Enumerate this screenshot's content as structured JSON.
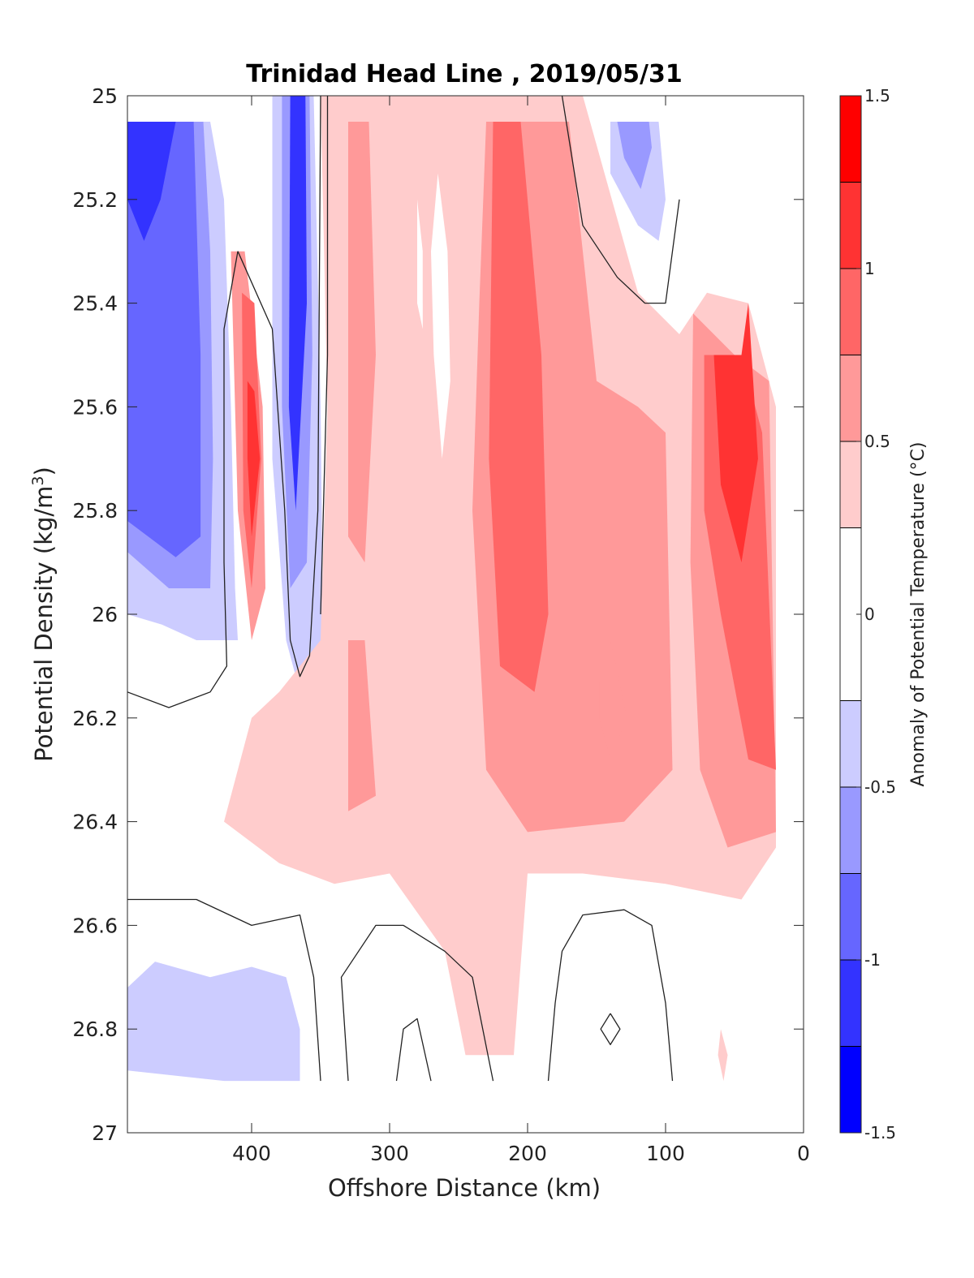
{
  "chart_data": {
    "type": "heatmap",
    "title": "Trinidad Head Line , 2019/05/31",
    "xlabel": "Offshore Distance (km)",
    "ylabel": "Potential Density (kg/m",
    "ylabel_superscript": "3",
    "ylabel_suffix": ")",
    "colorbar_label": "Anomaly of Potential Temperature (°C)",
    "xlim": [
      490,
      0
    ],
    "x_reversed": true,
    "ylim": [
      25,
      27
    ],
    "y_reversed": true,
    "x_ticks": [
      400,
      300,
      200,
      100,
      0
    ],
    "x_tick_labels": [
      "400",
      "300",
      "200",
      "100",
      "0"
    ],
    "y_ticks": [
      25,
      25.2,
      25.4,
      25.6,
      25.8,
      26,
      26.2,
      26.4,
      26.6,
      26.8,
      27
    ],
    "y_tick_labels": [
      "25",
      "25.2",
      "25.4",
      "25.6",
      "25.8",
      "26",
      "26.2",
      "26.4",
      "26.6",
      "26.8",
      "27"
    ],
    "colorbar_range": [
      -1.5,
      1.5
    ],
    "colorbar_ticks": [
      -1.5,
      -1,
      -0.5,
      0,
      0.5,
      1,
      1.5
    ],
    "colorbar_tick_labels": [
      "-1.5",
      "-1",
      "-0.5",
      "0",
      "0.5",
      "1",
      "1.5"
    ],
    "levels": [
      -1.5,
      -1.25,
      -1,
      -0.75,
      -0.5,
      -0.25,
      0.25,
      0.5,
      0.75,
      1,
      1.25,
      1.5
    ],
    "level_colors": [
      "#0000ff",
      "#3333ff",
      "#6666ff",
      "#9999ff",
      "#ccccff",
      "#ffffff",
      "#ffcccc",
      "#ff9999",
      "#ff6666",
      "#ff3333",
      "#ff0000"
    ],
    "contour_lines_at": [
      -0.25,
      0.25
    ],
    "contour_line_color": "#222222",
    "regions": [
      {
        "fill": "#ccccff",
        "points": [
          [
            490,
            25.05
          ],
          [
            430,
            25.05
          ],
          [
            420,
            25.2
          ],
          [
            415,
            25.6
          ],
          [
            412,
            25.95
          ],
          [
            410,
            26.05
          ],
          [
            440,
            26.05
          ],
          [
            465,
            26.02
          ],
          [
            490,
            26.0
          ]
        ]
      },
      {
        "fill": "#9999ff",
        "points": [
          [
            490,
            25.05
          ],
          [
            435,
            25.05
          ],
          [
            430,
            25.3
          ],
          [
            428,
            25.7
          ],
          [
            430,
            25.95
          ],
          [
            460,
            25.95
          ],
          [
            490,
            25.88
          ]
        ]
      },
      {
        "fill": "#6666ff",
        "points": [
          [
            490,
            25.05
          ],
          [
            442,
            25.05
          ],
          [
            437,
            25.5
          ],
          [
            437,
            25.85
          ],
          [
            455,
            25.89
          ],
          [
            490,
            25.82
          ]
        ]
      },
      {
        "fill": "#3333ff",
        "points": [
          [
            490,
            25.05
          ],
          [
            455,
            25.05
          ],
          [
            466,
            25.2
          ],
          [
            478,
            25.28
          ],
          [
            490,
            25.2
          ]
        ]
      },
      {
        "fill": "#ccccff",
        "points": [
          [
            385,
            25.0
          ],
          [
            355,
            25.0
          ],
          [
            350,
            25.6
          ],
          [
            348,
            26.1
          ],
          [
            360,
            26.2
          ],
          [
            375,
            26.05
          ],
          [
            385,
            25.7
          ]
        ]
      },
      {
        "fill": "#9999ff",
        "points": [
          [
            378,
            25.0
          ],
          [
            358,
            25.0
          ],
          [
            356,
            25.5
          ],
          [
            360,
            25.9
          ],
          [
            372,
            25.95
          ],
          [
            378,
            25.6
          ]
        ]
      },
      {
        "fill": "#3333ff",
        "points": [
          [
            372,
            25.0
          ],
          [
            361,
            25.0
          ],
          [
            360,
            25.4
          ],
          [
            368,
            25.8
          ],
          [
            373,
            25.6
          ]
        ]
      },
      {
        "fill": "#ffcccc",
        "points": [
          [
            350,
            25.0
          ],
          [
            230,
            25.0
          ],
          [
            200,
            25.0
          ],
          [
            160,
            25.0
          ],
          [
            120,
            25.38
          ],
          [
            90,
            25.46
          ],
          [
            70,
            25.38
          ],
          [
            40,
            25.4
          ],
          [
            20,
            25.6
          ],
          [
            20,
            26.45
          ],
          [
            45,
            26.55
          ],
          [
            100,
            26.52
          ],
          [
            160,
            26.5
          ],
          [
            200,
            26.5
          ],
          [
            210,
            26.85
          ],
          [
            245,
            26.85
          ],
          [
            260,
            26.65
          ],
          [
            300,
            26.5
          ],
          [
            340,
            26.52
          ],
          [
            380,
            26.48
          ],
          [
            420,
            26.4
          ],
          [
            400,
            26.2
          ],
          [
            380,
            26.15
          ],
          [
            350,
            26.05
          ],
          [
            345,
            25.6
          ]
        ]
      },
      {
        "fill": "#ff9999",
        "points": [
          [
            330,
            25.05
          ],
          [
            315,
            25.05
          ],
          [
            310,
            25.5
          ],
          [
            318,
            25.9
          ],
          [
            330,
            25.85
          ]
        ]
      },
      {
        "fill": "#ff9999",
        "points": [
          [
            330,
            26.05
          ],
          [
            318,
            26.05
          ],
          [
            310,
            26.35
          ],
          [
            330,
            26.38
          ]
        ]
      },
      {
        "fill": "#ff9999",
        "points": [
          [
            230,
            25.05
          ],
          [
            170,
            25.05
          ],
          [
            150,
            25.55
          ],
          [
            120,
            25.6
          ],
          [
            100,
            25.65
          ],
          [
            95,
            26.3
          ],
          [
            130,
            26.4
          ],
          [
            200,
            26.42
          ],
          [
            230,
            26.3
          ],
          [
            240,
            25.8
          ],
          [
            235,
            25.4
          ]
        ]
      },
      {
        "fill": "#ff6666",
        "points": [
          [
            225,
            25.05
          ],
          [
            205,
            25.05
          ],
          [
            190,
            25.5
          ],
          [
            185,
            26.0
          ],
          [
            195,
            26.15
          ],
          [
            220,
            26.1
          ],
          [
            228,
            25.7
          ]
        ]
      },
      {
        "fill": "#ff9999",
        "points": [
          [
            80,
            25.42
          ],
          [
            50,
            25.5
          ],
          [
            25,
            25.55
          ],
          [
            20,
            26.42
          ],
          [
            55,
            26.45
          ],
          [
            75,
            26.3
          ],
          [
            82,
            25.9
          ]
        ]
      },
      {
        "fill": "#ff6666",
        "points": [
          [
            72,
            25.5
          ],
          [
            45,
            25.5
          ],
          [
            30,
            25.65
          ],
          [
            20,
            26.3
          ],
          [
            40,
            26.28
          ],
          [
            60,
            26.0
          ],
          [
            72,
            25.8
          ]
        ]
      },
      {
        "fill": "#ff3333",
        "points": [
          [
            65,
            25.5
          ],
          [
            45,
            25.5
          ],
          [
            40,
            25.4
          ],
          [
            33,
            25.7
          ],
          [
            45,
            25.9
          ],
          [
            60,
            25.75
          ]
        ]
      },
      {
        "fill": "#ff9999",
        "points": [
          [
            148,
            26.07
          ],
          [
            140,
            26.05
          ],
          [
            128,
            26.2
          ],
          [
            140,
            26.28
          ],
          [
            148,
            26.2
          ]
        ]
      },
      {
        "fill": "#ff9999",
        "points": [
          [
            415,
            25.3
          ],
          [
            405,
            25.3
          ],
          [
            392,
            25.6
          ],
          [
            390,
            25.95
          ],
          [
            400,
            26.05
          ],
          [
            410,
            25.8
          ]
        ]
      },
      {
        "fill": "#ff6666",
        "points": [
          [
            407,
            25.38
          ],
          [
            398,
            25.4
          ],
          [
            393,
            25.7
          ],
          [
            400,
            25.95
          ],
          [
            406,
            25.8
          ]
        ]
      },
      {
        "fill": "#ff3333",
        "points": [
          [
            403,
            25.55
          ],
          [
            398,
            25.57
          ],
          [
            394,
            25.7
          ],
          [
            400,
            25.85
          ],
          [
            403,
            25.7
          ]
        ]
      },
      {
        "fill": "#ffcccc",
        "points": [
          [
            60,
            26.8
          ],
          [
            55,
            26.85
          ],
          [
            58,
            26.9
          ],
          [
            62,
            26.85
          ]
        ]
      },
      {
        "fill": "#ffffff",
        "points": [
          [
            265,
            25.15
          ],
          [
            258,
            25.3
          ],
          [
            256,
            25.55
          ],
          [
            262,
            25.7
          ],
          [
            268,
            25.5
          ],
          [
            270,
            25.3
          ]
        ]
      },
      {
        "fill": "#ffffff",
        "points": [
          [
            280,
            25.2
          ],
          [
            276,
            25.3
          ],
          [
            276,
            25.45
          ],
          [
            280,
            25.4
          ]
        ]
      },
      {
        "fill": "#ccccff",
        "points": [
          [
            490,
            26.72
          ],
          [
            470,
            26.67
          ],
          [
            430,
            26.7
          ],
          [
            400,
            26.68
          ],
          [
            375,
            26.7
          ],
          [
            365,
            26.8
          ],
          [
            365,
            26.9
          ],
          [
            420,
            26.9
          ],
          [
            490,
            26.88
          ]
        ]
      },
      {
        "fill": "#ccccff",
        "points": [
          [
            140,
            25.05
          ],
          [
            105,
            25.05
          ],
          [
            100,
            25.2
          ],
          [
            105,
            25.28
          ],
          [
            120,
            25.25
          ],
          [
            140,
            25.15
          ]
        ]
      },
      {
        "fill": "#9999ff",
        "points": [
          [
            135,
            25.05
          ],
          [
            112,
            25.05
          ],
          [
            110,
            25.1
          ],
          [
            118,
            25.18
          ],
          [
            130,
            25.12
          ]
        ]
      }
    ],
    "contours": [
      {
        "points": [
          [
            410,
            25.3
          ],
          [
            420,
            25.45
          ],
          [
            420,
            25.9
          ],
          [
            418,
            26.1
          ],
          [
            430,
            26.15
          ],
          [
            460,
            26.18
          ],
          [
            490,
            26.15
          ]
        ]
      },
      {
        "points": [
          [
            410,
            25.3
          ],
          [
            385,
            25.45
          ],
          [
            376,
            25.8
          ],
          [
            372,
            26.05
          ],
          [
            365,
            26.12
          ],
          [
            358,
            26.08
          ],
          [
            352,
            25.8
          ],
          [
            350,
            25.0
          ]
        ]
      },
      {
        "points": [
          [
            345,
            25.0
          ],
          [
            345,
            25.5
          ],
          [
            350,
            26.0
          ]
        ]
      },
      {
        "points": [
          [
            175,
            25.0
          ],
          [
            160,
            25.25
          ],
          [
            135,
            25.35
          ],
          [
            115,
            25.4
          ],
          [
            100,
            25.4
          ],
          [
            90,
            25.2
          ]
        ]
      },
      {
        "points": [
          [
            490,
            26.55
          ],
          [
            440,
            26.55
          ],
          [
            400,
            26.6
          ],
          [
            365,
            26.58
          ],
          [
            355,
            26.7
          ],
          [
            350,
            26.9
          ]
        ]
      },
      {
        "points": [
          [
            330,
            26.9
          ],
          [
            335,
            26.7
          ],
          [
            310,
            26.6
          ],
          [
            290,
            26.6
          ],
          [
            260,
            26.65
          ],
          [
            240,
            26.7
          ],
          [
            225,
            26.9
          ]
        ]
      },
      {
        "points": [
          [
            295,
            26.9
          ],
          [
            290,
            26.8
          ],
          [
            280,
            26.78
          ],
          [
            270,
            26.9
          ]
        ]
      },
      {
        "points": [
          [
            185,
            26.9
          ],
          [
            180,
            26.75
          ],
          [
            175,
            26.65
          ],
          [
            160,
            26.58
          ],
          [
            130,
            26.57
          ],
          [
            110,
            26.6
          ],
          [
            100,
            26.75
          ],
          [
            95,
            26.9
          ]
        ]
      },
      {
        "points": [
          [
            140,
            26.77
          ],
          [
            133,
            26.8
          ],
          [
            140,
            26.83
          ],
          [
            147,
            26.8
          ],
          [
            140,
            26.77
          ]
        ]
      }
    ]
  }
}
